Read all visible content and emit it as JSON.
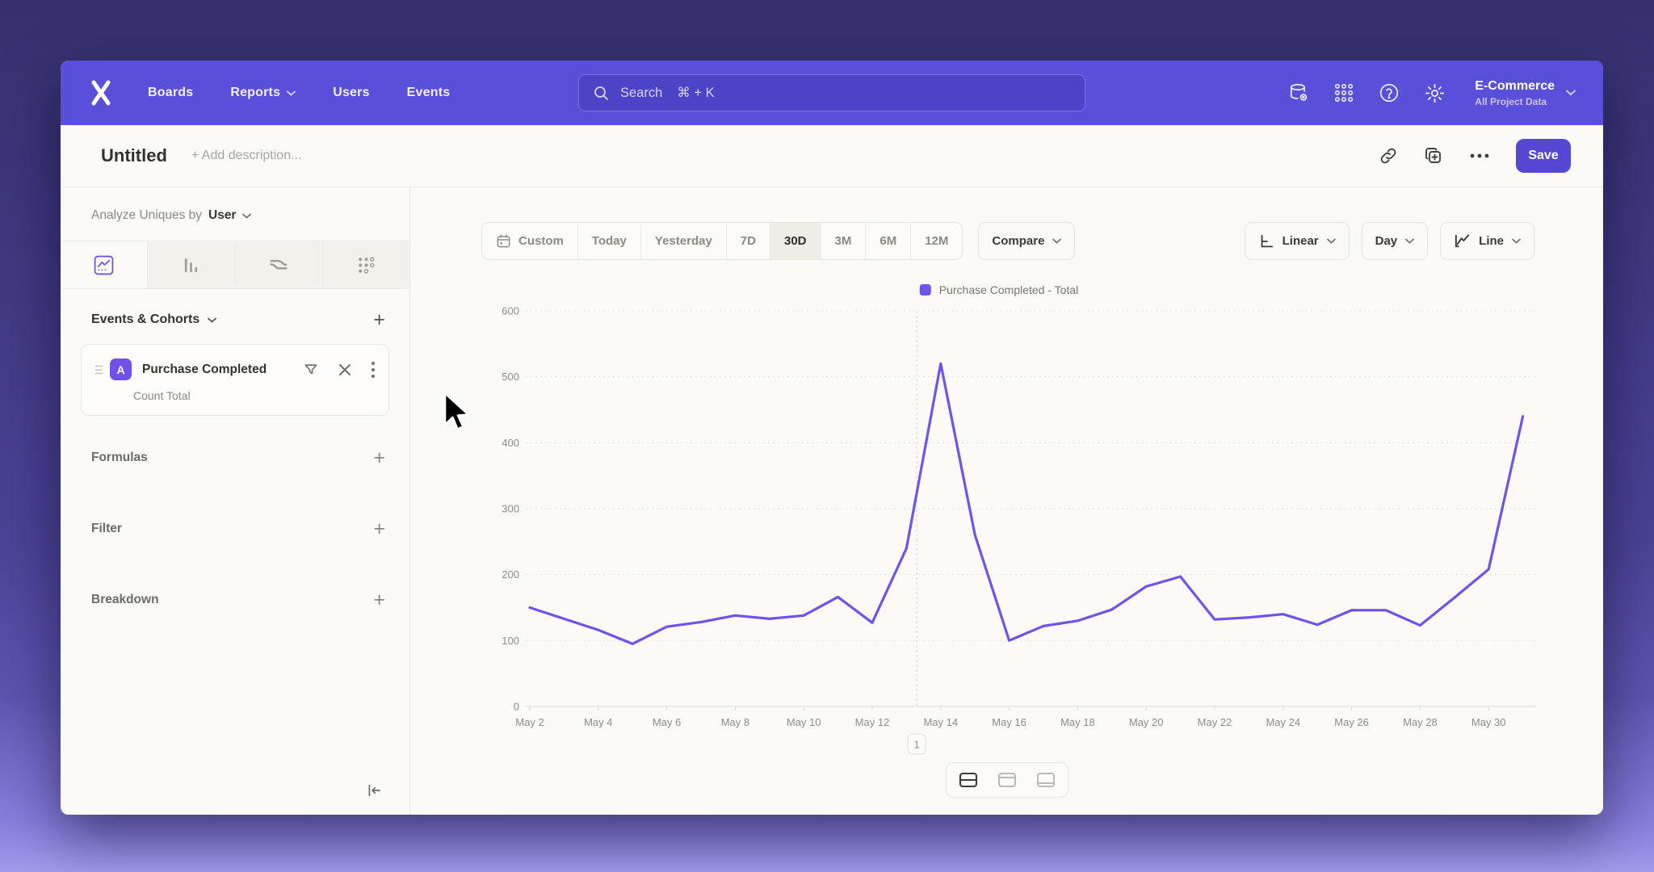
{
  "colors": {
    "accent": "#5A4FD8",
    "save": "#5347D4",
    "line": "#7053E8"
  },
  "nav": {
    "items": [
      "Boards",
      "Reports",
      "Users",
      "Events"
    ],
    "search_label": "Search",
    "search_shortcut": "⌘ + K",
    "project_name": "E-Commerce",
    "project_subtitle": "All Project Data"
  },
  "header": {
    "title": "Untitled",
    "description_placeholder": "+ Add description...",
    "save_label": "Save"
  },
  "sidebar": {
    "analyze_label": "Analyze Uniques by",
    "analyze_value": "User",
    "events_header": "Events & Cohorts",
    "add_label": "+",
    "event_card": {
      "badge": "A",
      "title": "Purchase Completed",
      "subtitle": "Count Total"
    },
    "formulas_label": "Formulas",
    "filter_label": "Filter",
    "breakdown_label": "Breakdown"
  },
  "controls": {
    "date_ranges": [
      "Custom",
      "Today",
      "Yesterday",
      "7D",
      "30D",
      "3M",
      "6M",
      "12M"
    ],
    "active_range": "30D",
    "compare_label": "Compare",
    "scale_label": "Linear",
    "interval_label": "Day",
    "chart_type_label": "Line"
  },
  "chart_data": {
    "type": "line",
    "title": "",
    "xlabel": "",
    "ylabel": "",
    "categories": [
      "May 2",
      "May 3",
      "May 4",
      "May 5",
      "May 6",
      "May 7",
      "May 8",
      "May 9",
      "May 10",
      "May 11",
      "May 12",
      "May 13",
      "May 14",
      "May 15",
      "May 16",
      "May 17",
      "May 18",
      "May 19",
      "May 20",
      "May 21",
      "May 22",
      "May 23",
      "May 24",
      "May 25",
      "May 26",
      "May 27",
      "May 28",
      "May 29",
      "May 30",
      "May 31"
    ],
    "series": [
      {
        "name": "Purchase Completed - Total",
        "color": "#7053E8",
        "values": [
          150,
          133,
          116,
          95,
          121,
          128,
          138,
          133,
          138,
          166,
          127,
          240,
          520,
          260,
          100,
          122,
          130,
          147,
          182,
          197,
          132,
          135,
          140,
          124,
          146,
          146,
          123,
          165,
          208,
          440
        ]
      }
    ],
    "ylim": [
      0,
      600
    ],
    "y_ticks": [
      0,
      100,
      200,
      300,
      400,
      500,
      600
    ],
    "x_tick_every": 2,
    "grid": "horizontal-dotted",
    "legend_position": "top-center",
    "annotations": [
      {
        "label": "1",
        "x_index": 11.3
      }
    ]
  }
}
